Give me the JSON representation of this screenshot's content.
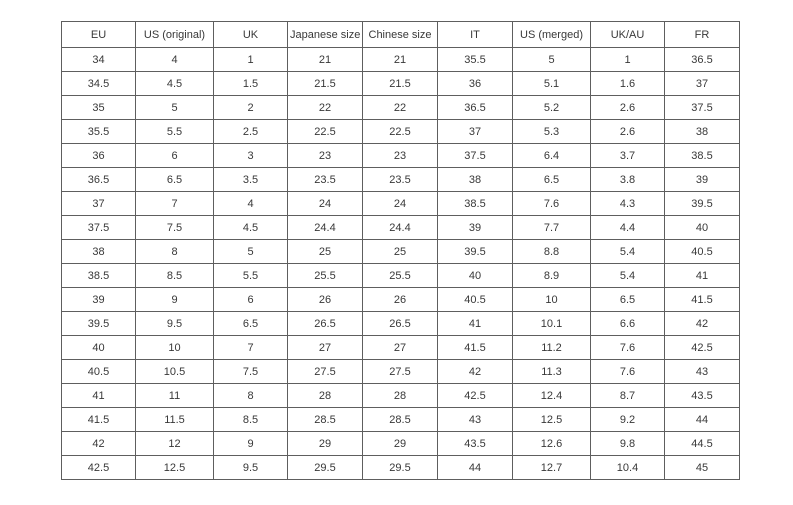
{
  "colors": {
    "background": "#ffffff",
    "border": "#5e5e5e",
    "text": "#383838"
  },
  "table": {
    "name": "shoe-size-conversion-table",
    "headers": [
      "EU",
      "US (original)",
      "UK",
      "Japanese size",
      "Chinese size",
      "IT",
      "US (merged)",
      "UK/AU",
      "FR"
    ],
    "rows": [
      [
        "34",
        "4",
        "1",
        "21",
        "21",
        "35.5",
        "5",
        "1",
        "36.5"
      ],
      [
        "34.5",
        "4.5",
        "1.5",
        "21.5",
        "21.5",
        "36",
        "5.1",
        "1.6",
        "37"
      ],
      [
        "35",
        "5",
        "2",
        "22",
        "22",
        "36.5",
        "5.2",
        "2.6",
        "37.5"
      ],
      [
        "35.5",
        "5.5",
        "2.5",
        "22.5",
        "22.5",
        "37",
        "5.3",
        "2.6",
        "38"
      ],
      [
        "36",
        "6",
        "3",
        "23",
        "23",
        "37.5",
        "6.4",
        "3.7",
        "38.5"
      ],
      [
        "36.5",
        "6.5",
        "3.5",
        "23.5",
        "23.5",
        "38",
        "6.5",
        "3.8",
        "39"
      ],
      [
        "37",
        "7",
        "4",
        "24",
        "24",
        "38.5",
        "7.6",
        "4.3",
        "39.5"
      ],
      [
        "37.5",
        "7.5",
        "4.5",
        "24.4",
        "24.4",
        "39",
        "7.7",
        "4.4",
        "40"
      ],
      [
        "38",
        "8",
        "5",
        "25",
        "25",
        "39.5",
        "8.8",
        "5.4",
        "40.5"
      ],
      [
        "38.5",
        "8.5",
        "5.5",
        "25.5",
        "25.5",
        "40",
        "8.9",
        "5.4",
        "41"
      ],
      [
        "39",
        "9",
        "6",
        "26",
        "26",
        "40.5",
        "10",
        "6.5",
        "41.5"
      ],
      [
        "39.5",
        "9.5",
        "6.5",
        "26.5",
        "26.5",
        "41",
        "10.1",
        "6.6",
        "42"
      ],
      [
        "40",
        "10",
        "7",
        "27",
        "27",
        "41.5",
        "11.2",
        "7.6",
        "42.5"
      ],
      [
        "40.5",
        "10.5",
        "7.5",
        "27.5",
        "27.5",
        "42",
        "11.3",
        "7.6",
        "43"
      ],
      [
        "41",
        "11",
        "8",
        "28",
        "28",
        "42.5",
        "12.4",
        "8.7",
        "43.5"
      ],
      [
        "41.5",
        "11.5",
        "8.5",
        "28.5",
        "28.5",
        "43",
        "12.5",
        "9.2",
        "44"
      ],
      [
        "42",
        "12",
        "9",
        "29",
        "29",
        "43.5",
        "12.6",
        "9.8",
        "44.5"
      ],
      [
        "42.5",
        "12.5",
        "9.5",
        "29.5",
        "29.5",
        "44",
        "12.7",
        "10.4",
        "45"
      ]
    ]
  }
}
